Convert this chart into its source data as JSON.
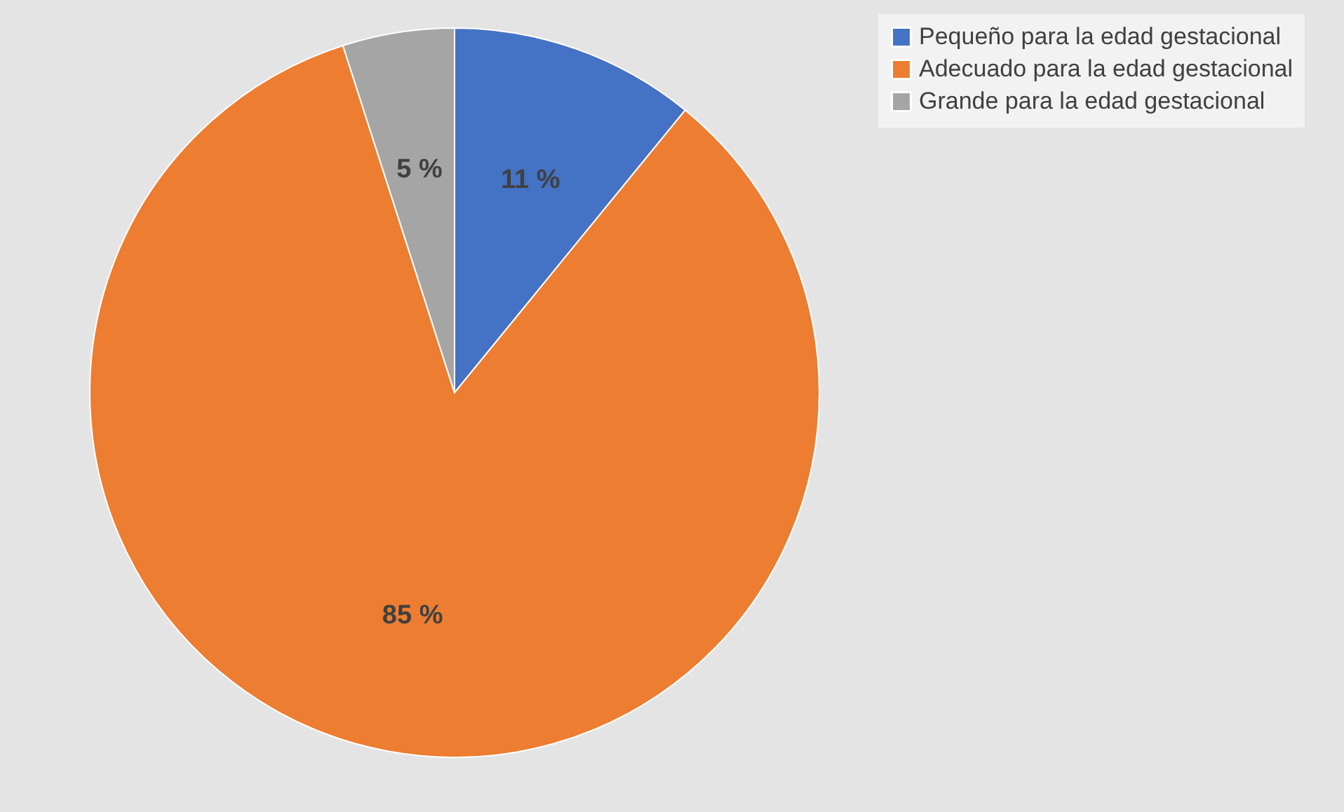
{
  "chart_data": {
    "type": "pie",
    "categories": [
      "Pequeño para la edad gestacional",
      "Adecuado para la edad gestacional",
      "Grande para la edad gestacional"
    ],
    "values": [
      11,
      85,
      5
    ],
    "colors": [
      "#4472c4",
      "#ed7d31",
      "#a5a5a5"
    ],
    "value_labels": [
      "11 %",
      "85 %",
      "5 %"
    ],
    "legend": "right"
  }
}
